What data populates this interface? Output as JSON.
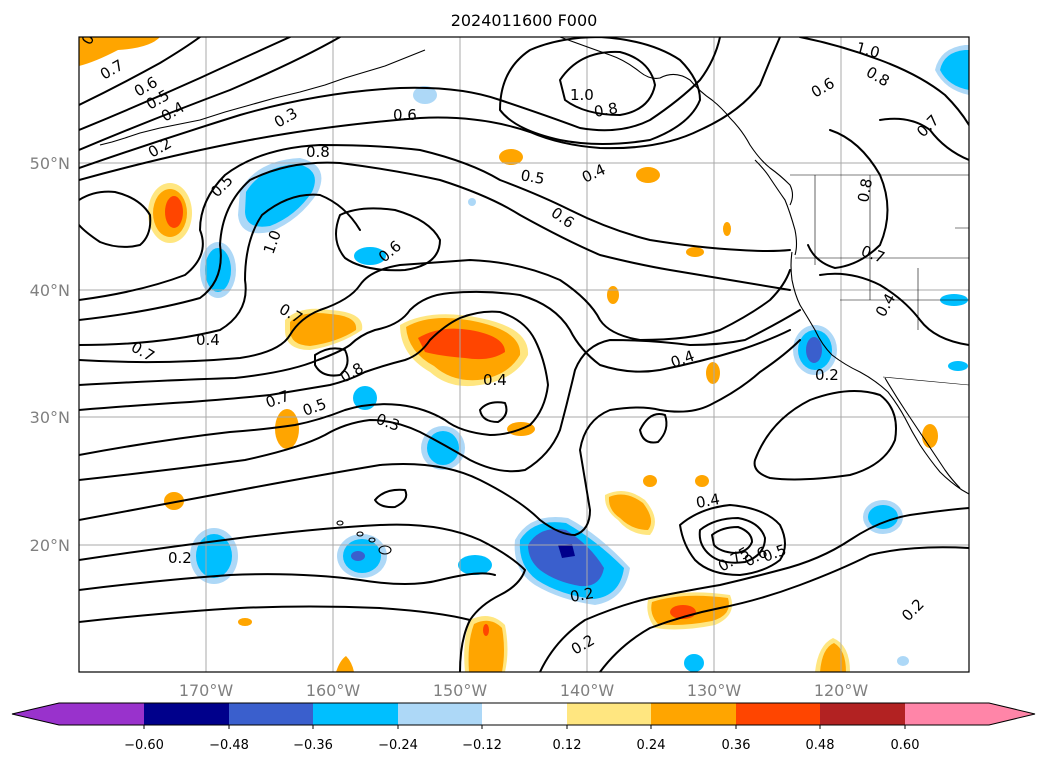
{
  "title": "2024011600 F000",
  "colors": {
    "neg_060": "#9932cc",
    "neg_048": "#00008b",
    "neg_036": "#3a5fcd",
    "neg_024": "#00bfff",
    "neg_012": "#add8f7",
    "zero": "#ffffff",
    "pos_012": "#ffe680",
    "pos_024": "#ffa500",
    "pos_036": "#ff4500",
    "pos_048": "#b22222",
    "pos_060": "#ff85a8",
    "grid": "#a9a9a9",
    "axis_label": "#808080"
  },
  "map": {
    "lat_labels": [
      "50°N",
      "40°N",
      "30°N",
      "20°N"
    ],
    "lon_labels": [
      "170°W",
      "160°W",
      "150°W",
      "140°W",
      "130°W",
      "120°W"
    ]
  },
  "colorbar": {
    "ticks": [
      "−0.60",
      "−0.48",
      "−0.36",
      "−0.24",
      "−0.12",
      "0.12",
      "0.24",
      "0.36",
      "0.48",
      "0.60"
    ]
  },
  "contour_labels": [
    "0.8",
    "0.7",
    "0.6",
    "0.5",
    "0.4",
    "0.2",
    "0.3",
    "0.8",
    "0.5",
    "1.0",
    "0.7",
    "0.4",
    "0.7",
    "0.8",
    "0.7",
    "0.5",
    "0.3",
    "0.2",
    "0.6",
    "0.8",
    "0.6",
    "0.5",
    "0.4",
    "0.6",
    "1.0",
    "0.8",
    "1.0",
    "0.8",
    "0.6",
    "0.7",
    "0.8",
    "0.7",
    "0.4",
    "0.2",
    "0.4",
    "0.4",
    "0.4",
    "0.75",
    "0.6",
    "0.5",
    "0.2",
    "0.2",
    "0.2"
  ]
}
